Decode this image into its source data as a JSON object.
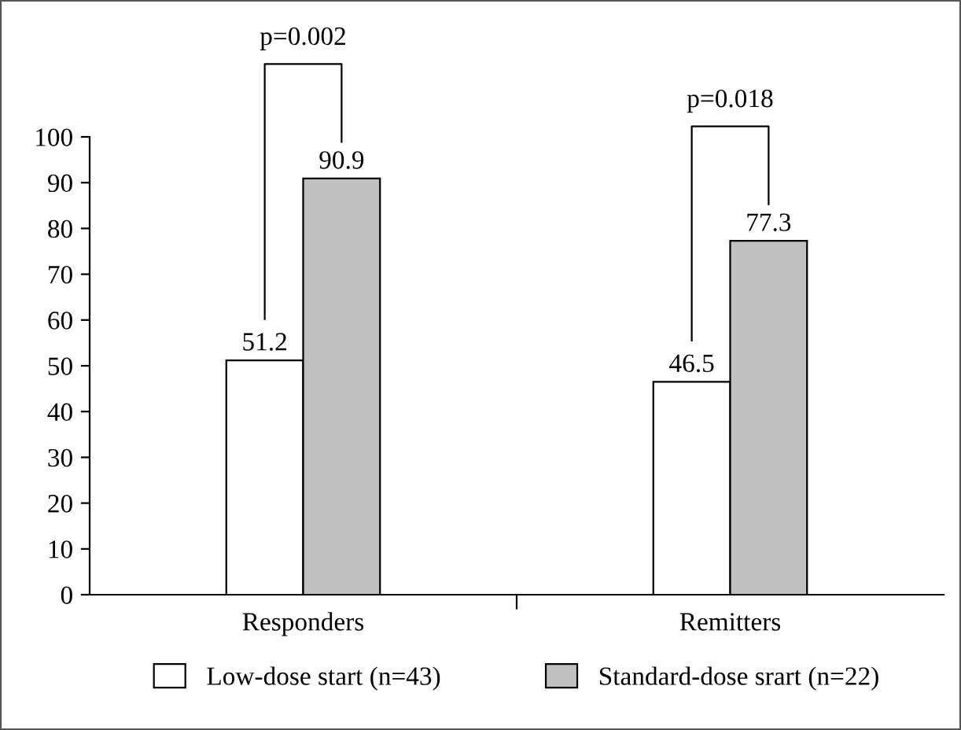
{
  "chart_data": {
    "type": "bar",
    "categories": [
      "Responders",
      "Remitters"
    ],
    "series": [
      {
        "name": "Low-dose start (n=43)",
        "color": "#ffffff",
        "values": [
          51.2,
          46.5
        ]
      },
      {
        "name": "Standard-dose srart (n=22)",
        "color": "#c0c0c0",
        "values": [
          90.9,
          77.3
        ]
      }
    ],
    "ylim": [
      0,
      100
    ],
    "yticks": [
      0,
      10,
      20,
      30,
      40,
      50,
      60,
      70,
      80,
      90,
      100
    ],
    "data_labels": true,
    "grid": false,
    "legend": "bottom",
    "annotations": [
      "p=0.002",
      "p=0.018"
    ]
  }
}
